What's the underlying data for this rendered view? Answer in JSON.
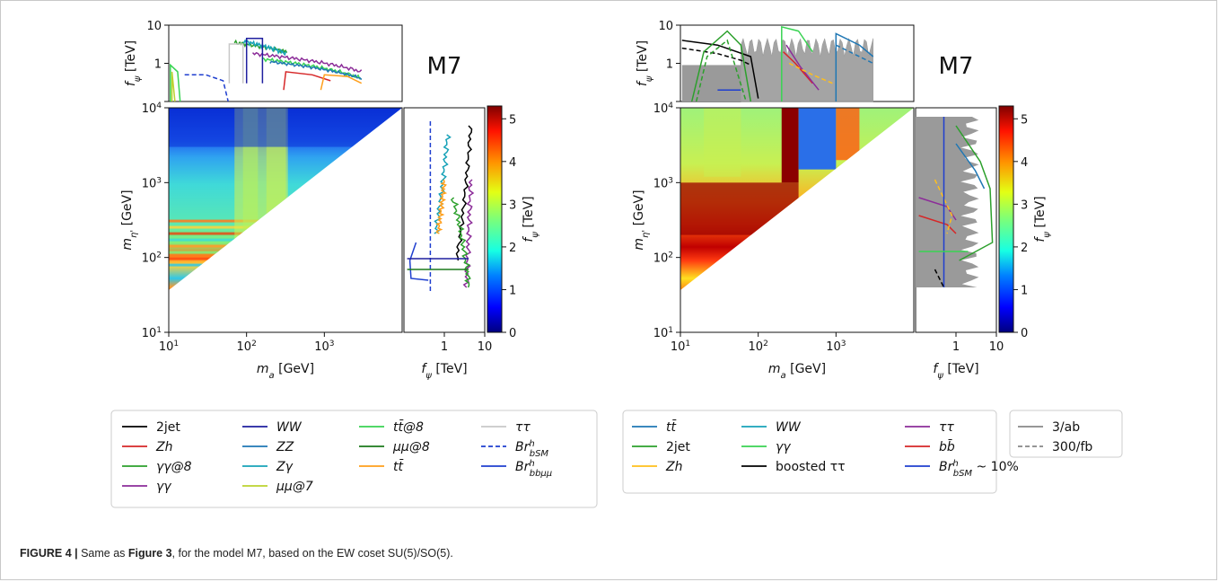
{
  "caption": {
    "label": "FIGURE 4 |",
    "before": " Same as ",
    "ref": "Figure 3",
    "after": ", for the model M7, based on the EW coset SU(5)/SO(5)."
  },
  "chart_data": [
    {
      "type": "heatmap",
      "panel": "left",
      "model_label": "M7",
      "xlabel": "m_a [GeV]",
      "ylabel": "m_η' [GeV]",
      "x_scale": "log",
      "y_scale": "log",
      "xlim": [
        10,
        10000
      ],
      "ylim": [
        10,
        10000
      ],
      "x_ticks": [
        "10^1",
        "10^2",
        "10^3"
      ],
      "y_ticks": [
        "10^1",
        "10^2",
        "10^3",
        "10^4"
      ],
      "top_panel": {
        "ylabel": "f_ψ [TeV]",
        "y_ticks": [
          "1",
          "10"
        ],
        "ylim": [
          0.1,
          10
        ]
      },
      "side_panel": {
        "xlabel": "f_ψ [TeV]",
        "x_ticks": [
          "1",
          "10"
        ],
        "xlim": [
          0.1,
          10
        ]
      },
      "colorbar": {
        "label": "f_ψ [TeV]",
        "ticks": [
          0,
          1,
          2,
          3,
          4,
          5
        ],
        "range": [
          0,
          5.3
        ]
      },
      "legend": [
        {
          "label": "2jet",
          "color": "#000000",
          "dash": "solid"
        },
        {
          "label": "Zh",
          "color": "#d62728",
          "dash": "solid"
        },
        {
          "label": "γγ@8",
          "color": "#2ca02c",
          "dash": "solid"
        },
        {
          "label": "γγ",
          "color": "#8c2d99",
          "dash": "solid"
        },
        {
          "label": "WW",
          "color": "#1f1f9f",
          "dash": "solid"
        },
        {
          "label": "ZZ",
          "color": "#1f77b4",
          "dash": "solid"
        },
        {
          "label": "Zγ",
          "color": "#17a2b8",
          "dash": "solid"
        },
        {
          "label": "μμ@7",
          "color": "#bcd22f",
          "dash": "solid"
        },
        {
          "label": "tt̄@8",
          "color": "#39d353",
          "dash": "solid"
        },
        {
          "label": "μμ@8",
          "color": "#1b7a1b",
          "dash": "solid"
        },
        {
          "label": "tt̄",
          "color": "#ff9f1c",
          "dash": "solid"
        },
        {
          "label": "ττ",
          "color": "#c8c8c8",
          "dash": "solid"
        },
        {
          "label": "Br^h_bSM",
          "color": "#1f3fcf",
          "dash": "dashed"
        },
        {
          "label": "Br^h_bbμμ",
          "color": "#1f3fcf",
          "dash": "solid"
        }
      ]
    },
    {
      "type": "heatmap",
      "panel": "right",
      "model_label": "M7",
      "xlabel": "m_a [GeV]",
      "ylabel": "m_η' [GeV]",
      "x_scale": "log",
      "y_scale": "log",
      "xlim": [
        10,
        10000
      ],
      "ylim": [
        10,
        10000
      ],
      "x_ticks": [
        "10^1",
        "10^2",
        "10^3"
      ],
      "y_ticks": [
        "10^1",
        "10^2",
        "10^3",
        "10^4"
      ],
      "top_panel": {
        "ylabel": "f_ψ [TeV]",
        "y_ticks": [
          "1",
          "10"
        ],
        "ylim": [
          0.1,
          10
        ]
      },
      "side_panel": {
        "xlabel": "f_ψ [TeV]",
        "x_ticks": [
          "1",
          "10"
        ],
        "xlim": [
          0.1,
          10
        ]
      },
      "colorbar": {
        "label": "f_ψ [TeV]",
        "ticks": [
          0,
          1,
          2,
          3,
          4,
          5
        ],
        "range": [
          0,
          5.3
        ]
      },
      "legend": [
        {
          "label": "tt̄",
          "color": "#1f77b4",
          "dash": "solid"
        },
        {
          "label": "2jet",
          "color": "#2ca02c",
          "dash": "solid"
        },
        {
          "label": "Zh",
          "color": "#ffbf1c",
          "dash": "solid"
        },
        {
          "label": "WW",
          "color": "#17a2b8",
          "dash": "solid"
        },
        {
          "label": "γγ",
          "color": "#39d353",
          "dash": "solid"
        },
        {
          "label": "boosted ττ",
          "color": "#000000",
          "dash": "solid"
        },
        {
          "label": "ττ",
          "color": "#8c2d99",
          "dash": "solid"
        },
        {
          "label": "bb̄",
          "color": "#d62728",
          "dash": "solid"
        },
        {
          "label": "Br^h_bSM ~ 10%",
          "color": "#1f3fcf",
          "dash": "solid"
        },
        {
          "label": "3/ab",
          "color": "#888888",
          "dash": "solid"
        },
        {
          "label": "300/fb",
          "color": "#888888",
          "dash": "dashed"
        }
      ]
    }
  ]
}
